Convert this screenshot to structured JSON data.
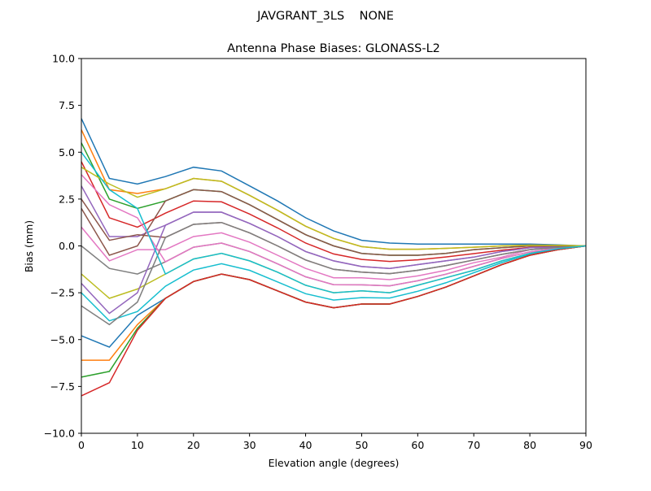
{
  "chart_data": {
    "type": "line",
    "suptitle": "JAVGRANT_3LS    NONE",
    "title": "Antenna Phase Biases: GLONASS-L2",
    "xlabel": "Elevation angle (degrees)",
    "ylabel": "Bias (mm)",
    "xlim": [
      0,
      90
    ],
    "ylim": [
      -10,
      10
    ],
    "xticks": [
      "0",
      "10",
      "20",
      "30",
      "40",
      "50",
      "60",
      "70",
      "80",
      "90"
    ],
    "yticks": [
      "−10.0",
      "−7.5",
      "−5.0",
      "−2.5",
      "0.0",
      "2.5",
      "5.0",
      "7.5",
      "10.0"
    ],
    "xtick_values": [
      0,
      10,
      20,
      30,
      40,
      50,
      60,
      70,
      80,
      90
    ],
    "ytick_values": [
      -10,
      -7.5,
      -5,
      -2.5,
      0,
      2.5,
      5,
      7.5,
      10
    ],
    "grid": false,
    "x": [
      0,
      5,
      10,
      15,
      20,
      25,
      30,
      35,
      40,
      45,
      50,
      55,
      60,
      65,
      70,
      75,
      80,
      85,
      90
    ],
    "colors": [
      "#1f77b4",
      "#ff7f0e",
      "#2ca02c",
      "#d62728",
      "#9467bd",
      "#8c564b",
      "#e377c2",
      "#7f7f7f",
      "#bcbd22",
      "#17becf"
    ],
    "series": [
      {
        "values": [
          6.8,
          3.6,
          3.3,
          3.7,
          4.2,
          4.0,
          3.2,
          2.4,
          1.5,
          0.8,
          0.3,
          0.15,
          0.1,
          0.1,
          0.1,
          0.1,
          0.1,
          0.05,
          0
        ]
      },
      {
        "values": [
          6.2,
          3.0,
          2.8,
          3.05,
          3.6,
          3.45,
          2.7,
          1.9,
          1.05,
          0.4,
          -0.04,
          -0.18,
          -0.18,
          -0.13,
          -0.07,
          0.0,
          0.04,
          0.03,
          0
        ]
      },
      {
        "values": [
          5.5,
          2.5,
          2.0,
          2.4,
          3.0,
          2.9,
          2.2,
          1.4,
          0.6,
          0.0,
          -0.4,
          -0.5,
          -0.5,
          -0.4,
          -0.2,
          -0.1,
          0.0,
          0.0,
          0
        ]
      },
      {
        "values": [
          4.5,
          1.5,
          1.0,
          1.75,
          2.4,
          2.35,
          1.7,
          0.96,
          0.15,
          -0.43,
          -0.72,
          -0.83,
          -0.74,
          -0.59,
          -0.41,
          -0.23,
          -0.08,
          -0.03,
          0
        ]
      },
      {
        "values": [
          3.2,
          0.5,
          0.5,
          1.1,
          1.8,
          1.8,
          1.2,
          0.5,
          -0.3,
          -0.8,
          -1.1,
          -1.2,
          -1.0,
          -0.8,
          -0.6,
          -0.3,
          -0.1,
          -0.05,
          0
        ]
      },
      {
        "values": [
          2.5,
          0.3,
          0.6,
          0.45,
          1.15,
          1.25,
          0.7,
          0.0,
          -0.75,
          -1.25,
          -1.4,
          -1.48,
          -1.3,
          -1.05,
          -0.75,
          -0.45,
          -0.2,
          -0.08,
          0
        ]
      },
      {
        "values": [
          1.0,
          -0.8,
          -0.2,
          -0.2,
          0.5,
          0.7,
          0.2,
          -0.5,
          -1.2,
          -1.7,
          -1.7,
          -1.8,
          -1.6,
          -1.3,
          -0.9,
          -0.6,
          -0.2,
          -0.1,
          0
        ]
      },
      {
        "values": [
          0.0,
          -1.2,
          -1.5,
          -0.85,
          -0.07,
          0.15,
          -0.3,
          -0.96,
          -1.65,
          -2.07,
          -2.08,
          -2.13,
          -1.86,
          -1.51,
          -1.09,
          -0.67,
          -0.32,
          -0.13,
          0
        ]
      },
      {
        "values": [
          -1.5,
          -2.8,
          -2.3,
          -1.5,
          -0.7,
          -0.4,
          -0.8,
          -1.4,
          -2.1,
          -2.5,
          -2.4,
          -2.5,
          -2.1,
          -1.7,
          -1.3,
          -0.8,
          -0.4,
          -0.15,
          0
        ]
      },
      {
        "values": [
          -2.5,
          -4.0,
          -3.5,
          -2.15,
          -1.29,
          -0.95,
          -1.3,
          -1.92,
          -2.55,
          -2.89,
          -2.76,
          -2.78,
          -2.42,
          -1.97,
          -1.43,
          -0.89,
          -0.44,
          -0.18,
          0
        ]
      },
      {
        "values": [
          -4.8,
          -5.4,
          -3.7,
          -2.8,
          -1.9,
          -1.5,
          -1.8,
          -2.4,
          -3.0,
          -3.3,
          -3.1,
          -3.1,
          -2.7,
          -2.2,
          -1.6,
          -1.0,
          -0.5,
          -0.2,
          0
        ]
      },
      {
        "values": [
          -6.1,
          -6.1,
          -4.2,
          -2.8,
          -1.9,
          -1.5,
          -1.8,
          -2.4,
          -3.0,
          -3.3,
          -3.1,
          -3.1,
          -2.7,
          -2.2,
          -1.6,
          -1.0,
          -0.5,
          -0.2,
          0
        ]
      },
      {
        "values": [
          -7.0,
          -6.7,
          -4.4,
          -2.8,
          -1.9,
          -1.5,
          -1.8,
          -2.4,
          -3.0,
          -3.3,
          -3.1,
          -3.1,
          -2.7,
          -2.2,
          -1.6,
          -1.0,
          -0.5,
          -0.2,
          0
        ]
      },
      {
        "values": [
          -8.0,
          -7.3,
          -4.5,
          -2.8,
          -1.9,
          -1.5,
          -1.8,
          -2.4,
          -3.0,
          -3.3,
          -3.1,
          -3.1,
          -2.7,
          -2.2,
          -1.6,
          -1.0,
          -0.5,
          -0.2,
          0
        ]
      },
      {
        "values": [
          -2.0,
          -3.6,
          -2.5,
          1.1,
          1.8,
          1.8,
          1.2,
          0.5,
          -0.3,
          -0.8,
          -1.1,
          -1.2,
          -1.0,
          -0.8,
          -0.6,
          -0.3,
          -0.1,
          -0.05,
          0
        ]
      },
      {
        "values": [
          2.0,
          -0.5,
          0.0,
          2.4,
          3.0,
          2.9,
          2.2,
          1.4,
          0.6,
          0.0,
          -0.4,
          -0.5,
          -0.5,
          -0.4,
          -0.2,
          -0.1,
          0.0,
          0.0,
          0
        ]
      },
      {
        "values": [
          3.8,
          2.2,
          1.5,
          -0.85,
          -0.07,
          0.15,
          -0.3,
          -0.96,
          -1.65,
          -2.07,
          -2.08,
          -2.13,
          -1.86,
          -1.51,
          -1.09,
          -0.67,
          -0.32,
          -0.13,
          0
        ]
      },
      {
        "values": [
          -3.2,
          -4.2,
          -3.0,
          0.45,
          1.15,
          1.25,
          0.7,
          0.0,
          -0.75,
          -1.25,
          -1.4,
          -1.48,
          -1.3,
          -1.05,
          -0.75,
          -0.45,
          -0.2,
          -0.08,
          0
        ]
      },
      {
        "values": [
          4.2,
          3.3,
          2.6,
          3.05,
          3.6,
          3.45,
          2.7,
          1.9,
          1.05,
          0.4,
          -0.04,
          -0.18,
          -0.18,
          -0.13,
          -0.07,
          0.0,
          0.04,
          0.03,
          0
        ]
      },
      {
        "values": [
          5.0,
          3.0,
          2.0,
          -1.5,
          -0.7,
          -0.4,
          -0.8,
          -1.4,
          -2.1,
          -2.5,
          -2.4,
          -2.5,
          -2.1,
          -1.7,
          -1.3,
          -0.8,
          -0.4,
          -0.15,
          0
        ]
      }
    ]
  }
}
